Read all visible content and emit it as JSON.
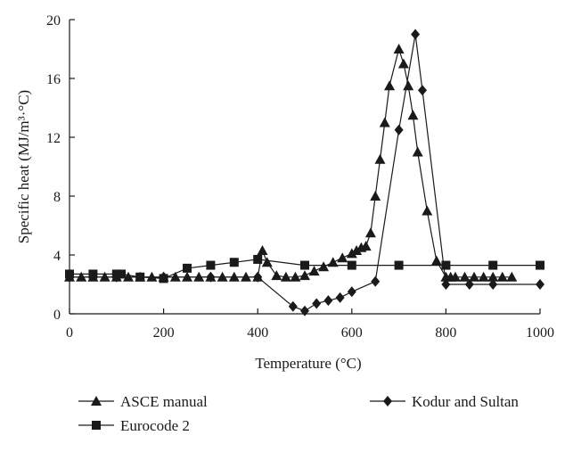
{
  "chart_data": {
    "type": "line",
    "title": "",
    "xlabel": "Temperature (°C)",
    "ylabel": "Specific heat (MJ/m³·°C)",
    "xlim": [
      0,
      1000
    ],
    "ylim": [
      0,
      20
    ],
    "xticks": [
      0,
      200,
      400,
      600,
      800,
      1000
    ],
    "yticks": [
      0,
      4,
      8,
      12,
      16,
      20
    ],
    "xtick_labels": [
      "0",
      "200",
      "400",
      "600",
      "800",
      "1000"
    ],
    "ytick_labels": [
      "0",
      "4",
      "8",
      "12",
      "16",
      "20"
    ],
    "grid": false,
    "legend_position": "bottom",
    "series": [
      {
        "name": "ASCE manual",
        "marker": "triangle",
        "x": [
          0,
          25,
          50,
          75,
          100,
          125,
          150,
          175,
          200,
          225,
          250,
          275,
          300,
          325,
          350,
          375,
          400,
          410,
          420,
          440,
          460,
          480,
          500,
          520,
          540,
          560,
          580,
          600,
          610,
          620,
          630,
          640,
          650,
          660,
          670,
          680,
          700,
          710,
          720,
          730,
          740,
          760,
          780,
          800,
          810,
          820,
          840,
          860,
          880,
          900,
          920,
          940
        ],
        "y": [
          2.5,
          2.5,
          2.5,
          2.5,
          2.5,
          2.5,
          2.5,
          2.5,
          2.5,
          2.5,
          2.5,
          2.5,
          2.5,
          2.5,
          2.5,
          2.5,
          2.5,
          4.3,
          3.5,
          2.6,
          2.5,
          2.5,
          2.6,
          2.9,
          3.2,
          3.5,
          3.8,
          4.1,
          4.3,
          4.5,
          4.6,
          5.5,
          8.0,
          10.5,
          13.0,
          15.5,
          18.0,
          17.0,
          15.5,
          13.5,
          11.0,
          7.0,
          3.6,
          2.5,
          2.5,
          2.5,
          2.5,
          2.5,
          2.5,
          2.5,
          2.5,
          2.5
        ]
      },
      {
        "name": "Eurocode 2",
        "marker": "square",
        "x": [
          0,
          50,
          100,
          110,
          150,
          200,
          250,
          300,
          350,
          400,
          500,
          600,
          700,
          800,
          900,
          1000
        ],
        "y": [
          2.7,
          2.7,
          2.7,
          2.7,
          2.5,
          2.4,
          3.1,
          3.3,
          3.5,
          3.7,
          3.3,
          3.3,
          3.3,
          3.3,
          3.3,
          3.3
        ]
      },
      {
        "name": "Kodur and Sultan",
        "marker": "diamond",
        "x": [
          0,
          100,
          200,
          300,
          400,
          475,
          500,
          525,
          550,
          575,
          600,
          650,
          700,
          735,
          750,
          800,
          850,
          900,
          1000
        ],
        "y": [
          2.5,
          2.5,
          2.5,
          2.5,
          2.5,
          0.5,
          0.2,
          0.7,
          0.9,
          1.1,
          1.5,
          2.2,
          12.5,
          19.0,
          15.2,
          2.0,
          2.0,
          2.0,
          2.0
        ]
      }
    ]
  }
}
